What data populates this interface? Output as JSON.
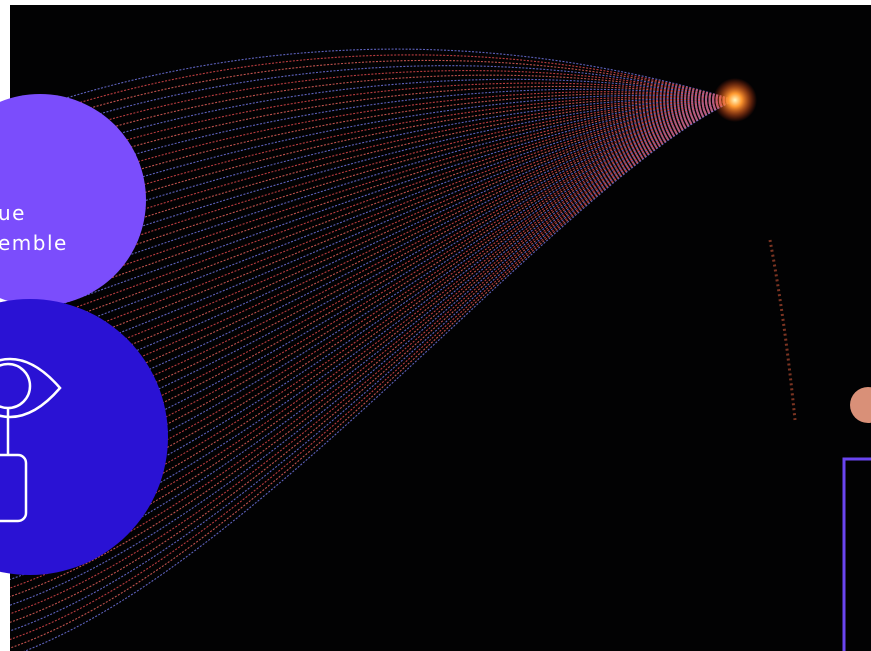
{
  "overlay": {
    "lines": [
      "ue",
      "emble"
    ]
  }
}
